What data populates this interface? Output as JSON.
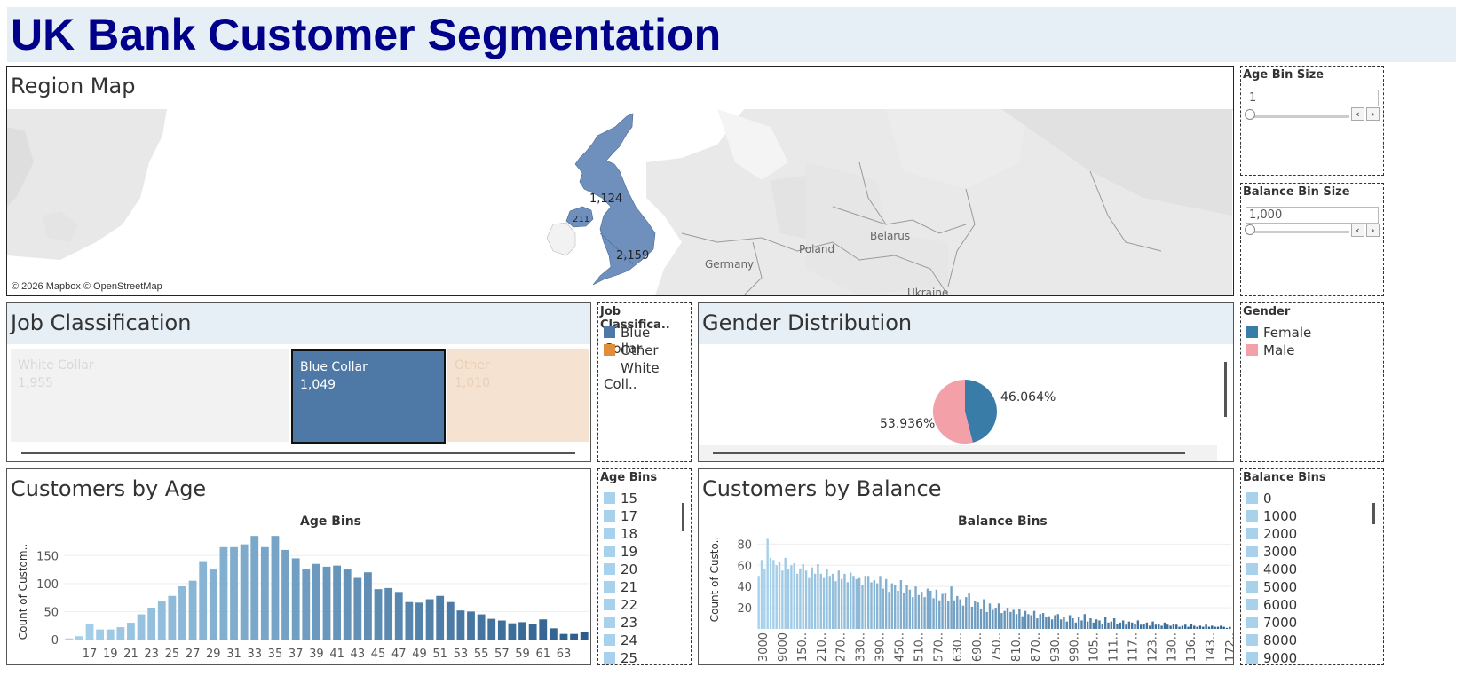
{
  "title": "UK Bank Customer Segmentation",
  "region_map": {
    "title": "Region Map",
    "attribution": "© 2026 Mapbox © OpenStreetMap",
    "country_labels": [
      "Poland",
      "Belarus",
      "Germany",
      "Ukraine"
    ],
    "region_values": [
      "1,124",
      "211",
      "2,159"
    ],
    "fill_color": "#6f8fbd"
  },
  "age_bin_size": {
    "title": "Age Bin Size",
    "value": "1"
  },
  "balance_bin_size": {
    "title": "Balance Bin Size",
    "value": "1,000"
  },
  "job_classification": {
    "title": "Job Classification",
    "cells": [
      {
        "label": "White Collar",
        "value": "1,955",
        "color": "#f2f2f2"
      },
      {
        "label": "Blue Collar",
        "value": "1,049",
        "color": "#4e79a7"
      },
      {
        "label": "Other",
        "value": "1,010",
        "color": "#f5e2d0"
      }
    ]
  },
  "job_legend": {
    "title": "Job Classifica..",
    "items": [
      {
        "label": "Blue Collar",
        "color": "#4e79a7"
      },
      {
        "label": "Other",
        "color": "#e08e3c"
      },
      {
        "label": "White Coll..",
        "color": "#ffffff"
      }
    ]
  },
  "gender_distribution": {
    "title": "Gender Distribution",
    "female_pct_label": "46.064%",
    "male_pct_label": "53.936%"
  },
  "gender_legend": {
    "title": "Gender",
    "items": [
      {
        "label": "Female",
        "color": "#3a7ca8"
      },
      {
        "label": "Male",
        "color": "#f4a0a8"
      }
    ]
  },
  "customers_by_age": {
    "title": "Customers by Age",
    "chart_title": "Age Bins",
    "ylabel": "Count of Custom.."
  },
  "age_legend": {
    "title": "Age Bins",
    "items": [
      "15",
      "17",
      "18",
      "19",
      "20",
      "21",
      "22",
      "23",
      "24",
      "25"
    ]
  },
  "customers_by_balance": {
    "title": "Customers by Balance",
    "chart_title": "Balance Bins",
    "ylabel": "Count of Custo.."
  },
  "balance_legend": {
    "title": "Balance Bins",
    "items": [
      "0",
      "1000",
      "2000",
      "3000",
      "4000",
      "5000",
      "6000",
      "7000",
      "8000",
      "9000"
    ]
  },
  "chart_data": [
    {
      "type": "bar",
      "title": "Age Bins",
      "ylabel": "Count of Custom..",
      "ylim": [
        0,
        190
      ],
      "yticks": [
        0,
        50,
        100,
        150
      ],
      "categories": [
        "15",
        "16",
        "17",
        "18",
        "19",
        "20",
        "21",
        "22",
        "23",
        "24",
        "25",
        "26",
        "27",
        "28",
        "29",
        "30",
        "31",
        "32",
        "33",
        "34",
        "35",
        "36",
        "37",
        "38",
        "39",
        "40",
        "41",
        "42",
        "43",
        "44",
        "45",
        "46",
        "47",
        "48",
        "49",
        "50",
        "51",
        "52",
        "53",
        "54",
        "55",
        "56",
        "57",
        "58",
        "59",
        "60",
        "61",
        "62",
        "63",
        "64",
        "65"
      ],
      "tick_labels": [
        "17",
        "19",
        "21",
        "23",
        "25",
        "27",
        "29",
        "31",
        "33",
        "35",
        "37",
        "39",
        "41",
        "43",
        "45",
        "47",
        "49",
        "51",
        "53",
        "55",
        "57",
        "59",
        "61",
        "63"
      ],
      "values": [
        2,
        6,
        28,
        18,
        18,
        22,
        30,
        45,
        57,
        68,
        78,
        95,
        105,
        140,
        125,
        165,
        165,
        170,
        185,
        165,
        185,
        160,
        145,
        125,
        135,
        130,
        132,
        125,
        110,
        120,
        90,
        92,
        85,
        67,
        66,
        72,
        78,
        67,
        52,
        50,
        45,
        37,
        34,
        29,
        31,
        28,
        36,
        20,
        10,
        10,
        13
      ]
    },
    {
      "type": "bar",
      "title": "Balance Bins",
      "ylabel": "Count of Custo..",
      "ylim": [
        0,
        92
      ],
      "yticks": [
        20,
        40,
        60,
        80
      ],
      "tick_labels": [
        "3000",
        "9000",
        "150..",
        "210..",
        "270..",
        "330..",
        "390..",
        "450..",
        "510..",
        "570..",
        "630..",
        "690..",
        "750..",
        "810..",
        "870..",
        "930..",
        "990..",
        "105..",
        "111..",
        "117..",
        "123..",
        "130..",
        "136..",
        "143..",
        "172.."
      ],
      "values": [
        50,
        65,
        57,
        85,
        67,
        65,
        60,
        63,
        55,
        67,
        56,
        60,
        62,
        52,
        57,
        61,
        55,
        48,
        58,
        52,
        61,
        52,
        48,
        56,
        50,
        52,
        45,
        55,
        47,
        52,
        44,
        53,
        50,
        47,
        48,
        41,
        50,
        50,
        44,
        46,
        43,
        50,
        38,
        47,
        35,
        43,
        41,
        36,
        46,
        34,
        41,
        37,
        30,
        40,
        32,
        35,
        30,
        38,
        36,
        29,
        37,
        27,
        33,
        34,
        26,
        40,
        27,
        31,
        28,
        22,
        30,
        34,
        21,
        26,
        25,
        19,
        28,
        16,
        24,
        18,
        20,
        24,
        15,
        17,
        20,
        16,
        18,
        14,
        19,
        12,
        17,
        14,
        13,
        17,
        10,
        14,
        15,
        11,
        12,
        9,
        13,
        14,
        9,
        11,
        7,
        13,
        10,
        6,
        11,
        8,
        14,
        7,
        10,
        6,
        9,
        8,
        5,
        11,
        6,
        7,
        10,
        5,
        6,
        8,
        4,
        7,
        6,
        5,
        8,
        4,
        5,
        6,
        3,
        7,
        4,
        5,
        3,
        6,
        4,
        3,
        5,
        4,
        2,
        3,
        4,
        2,
        5,
        3,
        2,
        3,
        2,
        4,
        2,
        3,
        2,
        2,
        3,
        2,
        1,
        2
      ]
    }
  ]
}
